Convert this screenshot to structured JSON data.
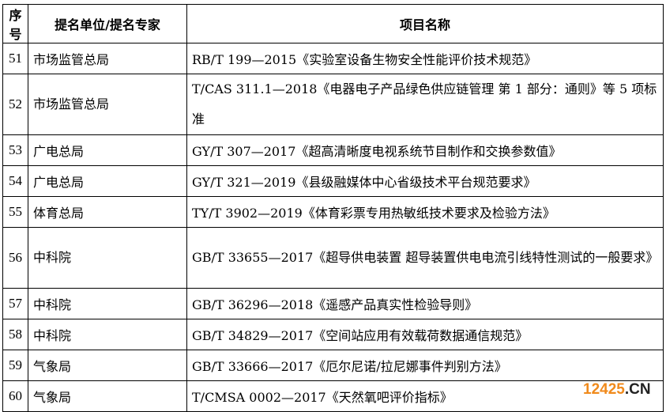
{
  "table": {
    "headers": [
      "序号",
      "提名单位/提名专家",
      "项目名称"
    ],
    "rows": [
      {
        "no": "51",
        "org": "市场监管总局",
        "project": "RB/T 199—2015《实验室设备生物安全性能评价技术规范》"
      },
      {
        "no": "52",
        "org": "市场监管总局",
        "project": "T/CAS 311.1—2018《电器电子产品绿色供应链管理 第 1 部分：通则》等 5 项标准"
      },
      {
        "no": "53",
        "org": "广电总局",
        "project": "GY/T 307—2017《超高清晰度电视系统节目制作和交换参数值》"
      },
      {
        "no": "54",
        "org": "广电总局",
        "project": "GY/T 321—2019《县级融媒体中心省级技术平台规范要求》"
      },
      {
        "no": "55",
        "org": "体育总局",
        "project": "TY/T 3902—2019《体育彩票专用热敏纸技术要求及检验方法》"
      },
      {
        "no": "56",
        "org": "中科院",
        "project": "GB/T 33655—2017《超导供电装置 超导装置供电电流引线特性测试的一般要求》"
      },
      {
        "no": "57",
        "org": "中科院",
        "project": "GB/T 36296—2018《遥感产品真实性检验导则》"
      },
      {
        "no": "58",
        "org": "中科院",
        "project": "GB/T 34829—2017《空间站应用有效载荷数据通信规范》"
      },
      {
        "no": "59",
        "org": "气象局",
        "project": "GB/T 33666—2017《厄尔尼诺/拉尼娜事件判别方法》"
      },
      {
        "no": "60",
        "org": "气象局",
        "project": "T/CMSA 0002—2017《天然氧吧评价指标》"
      }
    ]
  },
  "watermark": {
    "number": "12425",
    "suffix": ".CN",
    "colors": {
      "number": "#f08a1c",
      "suffix": "#222222"
    }
  }
}
